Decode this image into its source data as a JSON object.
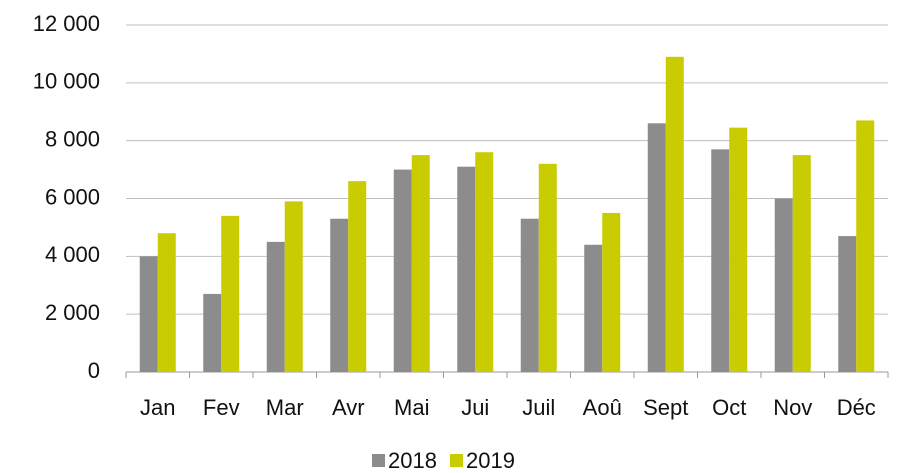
{
  "chart_data": {
    "type": "bar",
    "categories": [
      "Jan",
      "Fev",
      "Mar",
      "Avr",
      "Mai",
      "Jui",
      "Juil",
      "Aoû",
      "Sept",
      "Oct",
      "Nov",
      "Déc"
    ],
    "series": [
      {
        "name": "2018",
        "color": "#8c8c8c",
        "values": [
          4000,
          2700,
          4500,
          5300,
          7000,
          7100,
          5300,
          4400,
          8600,
          7700,
          6000,
          4700
        ]
      },
      {
        "name": "2019",
        "color": "#c8cc00",
        "values": [
          4800,
          5400,
          5900,
          6600,
          7500,
          7600,
          7200,
          5500,
          10900,
          8450,
          7500,
          8700
        ]
      }
    ],
    "ylim": [
      0,
      12000
    ],
    "yticks": [
      0,
      {
        "value": 2000,
        "label": "2 000"
      },
      {
        "value": 4000,
        "label": "4 000"
      },
      {
        "value": 6000,
        "label": "6 000"
      },
      {
        "value": 8000,
        "label": "8 000"
      },
      {
        "value": 10000,
        "label": "10 000"
      },
      {
        "value": 12000,
        "label": "12 000"
      }
    ],
    "grid": true,
    "legend": "bottom"
  }
}
